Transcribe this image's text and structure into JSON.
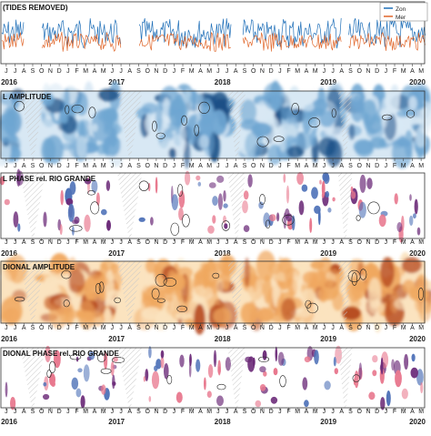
{
  "colors": {
    "zonal": "#1f6fb8",
    "meridional": "#e0662a",
    "amp_blue_light": "#d8e8f4",
    "amp_blue": "#6fa6d2",
    "amp_blue_dark": "#1b4f86",
    "amp_orange_light": "#fbe3bf",
    "amp_orange": "#f0a860",
    "amp_orange_dark": "#b5471c",
    "phase_pink": "#e8788e",
    "phase_purple": "#6b2a78",
    "phase_blue": "#4f72b8",
    "hatch": "#c9c9c9",
    "contour": "#222222"
  },
  "month_letters": [
    "J",
    "F",
    "M",
    "A",
    "M",
    "J",
    "J",
    "A",
    "S",
    "O",
    "N",
    "D"
  ],
  "chart_data": [
    {
      "panel": "time-series",
      "type": "line",
      "title": "(TIDES REMOVED)",
      "legend": [
        "Zon",
        "Mer"
      ],
      "legend_position": "top-right",
      "series": [
        {
          "name": "Zon",
          "color": "#1f6fb8"
        },
        {
          "name": "Mer",
          "color": "#e0662a"
        }
      ],
      "x_range": [
        "2016-06",
        "2020-06"
      ],
      "month_ticks_start": "2016-06",
      "year_labels": [
        "2016",
        "2017",
        "2018",
        "2019",
        "2020"
      ]
    },
    {
      "panel": "zonal-amplitude",
      "type": "heatmap",
      "title": "L AMPLITUDE",
      "colormap": "blues",
      "month_ticks_start": "2016-06",
      "year_labels": []
    },
    {
      "panel": "zonal-phase",
      "type": "heatmap",
      "title": "L PHASE rel. RIO GRANDE",
      "colormap": "phase",
      "month_ticks_start": "2016-06",
      "year_labels": [
        "2016",
        "2017",
        "2018",
        "2019",
        "2020"
      ]
    },
    {
      "panel": "meridional-amplitude",
      "type": "heatmap",
      "title": "DIONAL AMPLITUDE",
      "colormap": "oranges",
      "month_ticks_start": "2016-06",
      "year_labels": [
        "2016",
        "2017",
        "2018",
        "2019",
        "2020"
      ]
    },
    {
      "panel": "meridional-phase",
      "type": "heatmap",
      "title": "DIONAL PHASE rel. RIO GRANDE",
      "colormap": "phase",
      "month_ticks_start": "2016-06",
      "year_labels": [
        "2016",
        "2017",
        "2018",
        "2019",
        "2020"
      ]
    }
  ]
}
